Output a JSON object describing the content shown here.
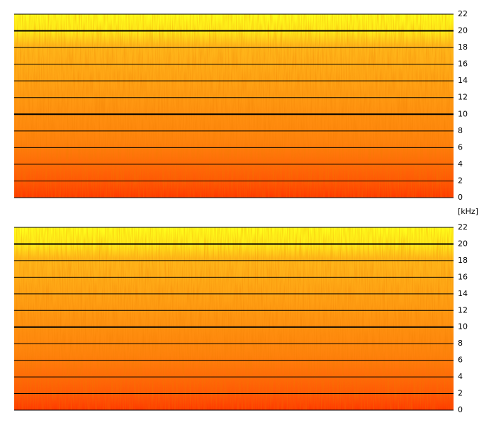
{
  "chart_data": [
    {
      "type": "spectrogram",
      "ylim": [
        0,
        22
      ],
      "yticks": [
        0,
        2,
        4,
        6,
        8,
        10,
        12,
        14,
        16,
        18,
        20,
        22
      ],
      "bold_lines": [
        10,
        20
      ],
      "grid": true
    },
    {
      "type": "spectrogram",
      "y_unit": "[kHz]",
      "ylim": [
        0,
        22
      ],
      "yticks": [
        0,
        2,
        4,
        6,
        8,
        10,
        12,
        14,
        16,
        18,
        20,
        22
      ],
      "bold_lines": [
        10,
        20
      ],
      "grid": true
    }
  ]
}
